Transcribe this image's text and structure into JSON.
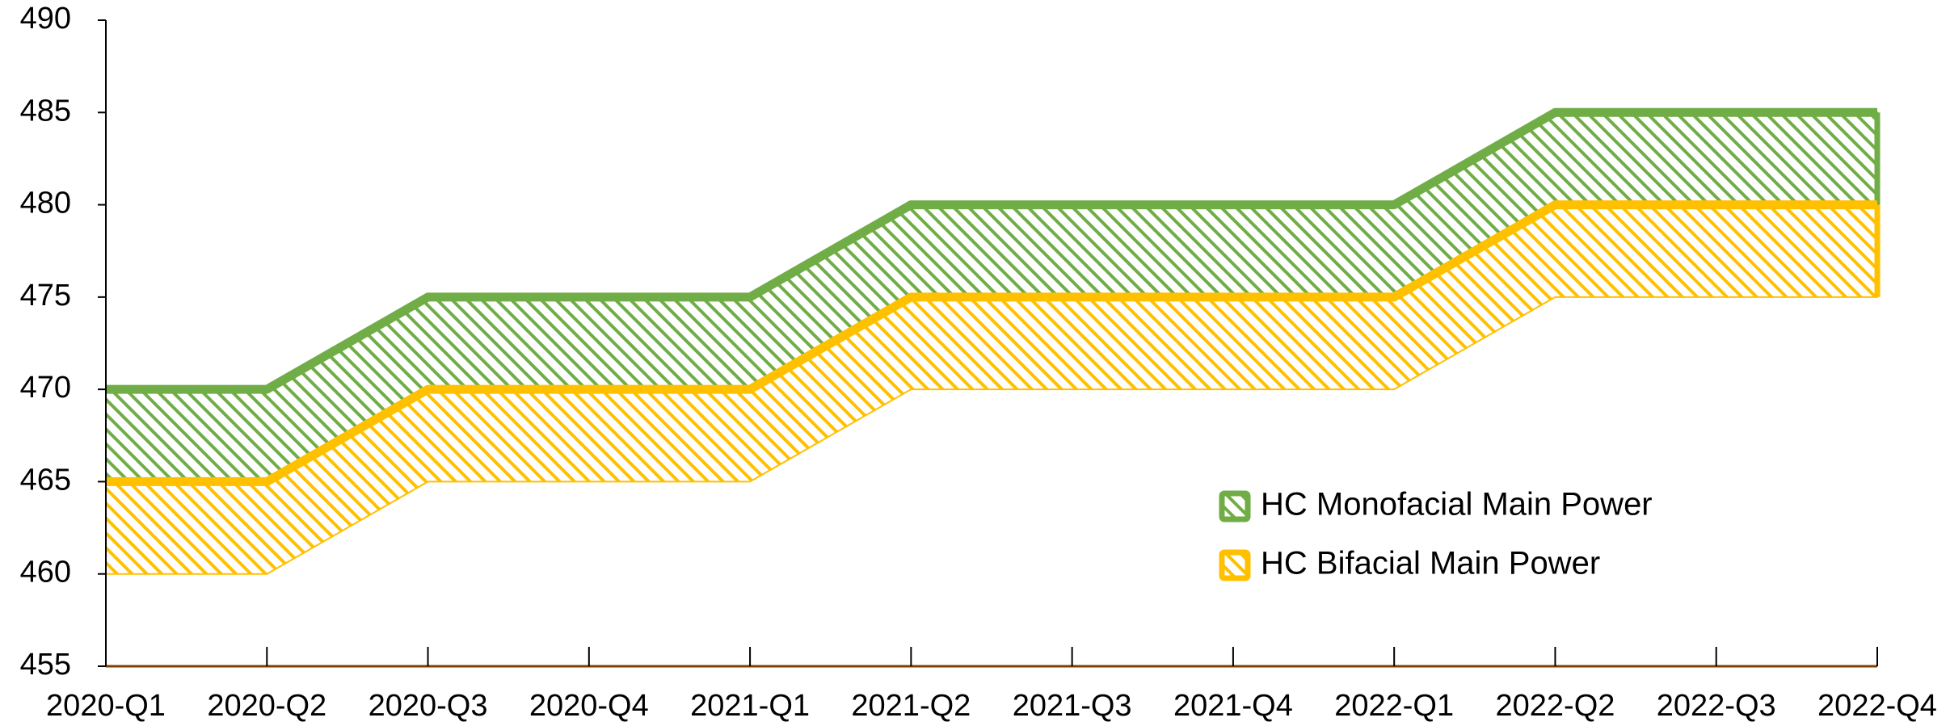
{
  "chart_data": {
    "type": "range-area",
    "categories": [
      "2020-Q1",
      "2020-Q2",
      "2020-Q3",
      "2020-Q4",
      "2021-Q1",
      "2021-Q2",
      "2021-Q3",
      "2021-Q4",
      "2022-Q1",
      "2022-Q2",
      "2022-Q3",
      "2022-Q4"
    ],
    "series": [
      {
        "name": "HC Monofacial Main Power",
        "color": "#70ad47",
        "high": [
          470,
          470,
          475,
          475,
          475,
          480,
          480,
          480,
          480,
          485,
          485,
          485
        ],
        "low": [
          465,
          465,
          470,
          470,
          470,
          475,
          475,
          475,
          475,
          480,
          480,
          480
        ]
      },
      {
        "name": "HC Bifacial Main Power",
        "color": "#ffc000",
        "high": [
          465,
          465,
          470,
          470,
          470,
          475,
          475,
          475,
          475,
          480,
          480,
          480
        ],
        "low": [
          460,
          460,
          465,
          465,
          465,
          470,
          470,
          470,
          470,
          475,
          475,
          475
        ]
      }
    ],
    "ylim": [
      455,
      490
    ],
    "yticks": [
      455,
      460,
      465,
      470,
      475,
      480,
      485,
      490
    ],
    "legend": "lower-right",
    "grid": false
  }
}
